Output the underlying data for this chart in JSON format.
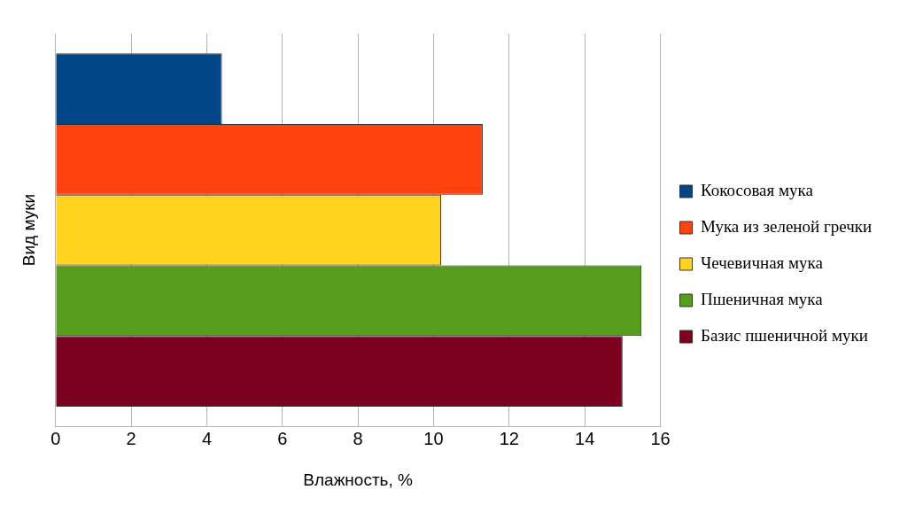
{
  "chart_data": {
    "type": "bar",
    "orientation": "horizontal",
    "categories": [
      null
    ],
    "xlabel": "Влажность, %",
    "ylabel": "Вид муки",
    "xlim": [
      0,
      16
    ],
    "xticks": [
      0,
      2,
      4,
      6,
      8,
      10,
      12,
      14,
      16
    ],
    "grid": "x",
    "legend": "right",
    "series": [
      {
        "name": "Кокосовая мука",
        "color": "#004586",
        "values": [
          4.4
        ]
      },
      {
        "name": "Мука из зеленой гречки",
        "color": "#ff420e",
        "values": [
          11.3
        ]
      },
      {
        "name": "Чечевичная мука",
        "color": "#ffd320",
        "values": [
          10.2
        ]
      },
      {
        "name": "Пшеничная мука",
        "color": "#579d1c",
        "values": [
          15.5
        ]
      },
      {
        "name": "Базис пшеничной муки",
        "color": "#7e0021",
        "values": [
          15
        ]
      }
    ]
  }
}
